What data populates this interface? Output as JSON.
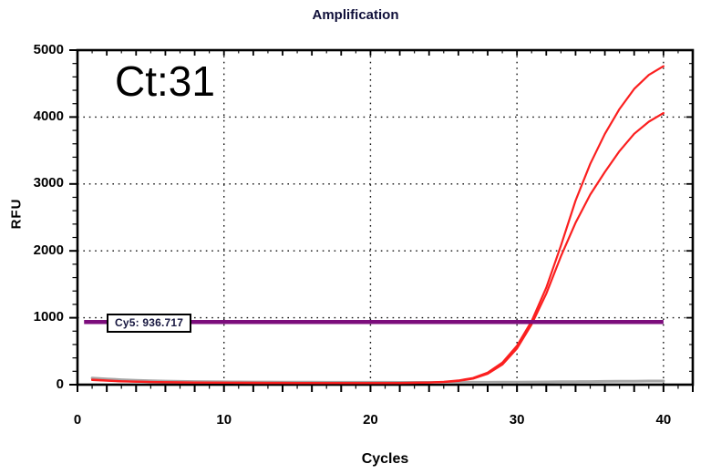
{
  "title": "Amplification",
  "annotation": {
    "ct_label": "Ct:31"
  },
  "colors": {
    "curve_red": "#fb1f1f",
    "baseline_gray": "#a6a6a6",
    "threshold_purple": "#7c0d7c",
    "axis_black": "#000000",
    "background": "#ffffff"
  },
  "chart_data": {
    "type": "line",
    "title": "Amplification",
    "xlabel": "Cycles",
    "ylabel": "RFU",
    "xlim": [
      0,
      42
    ],
    "ylim": [
      0,
      5000
    ],
    "x_ticks": [
      0,
      10,
      20,
      30,
      40
    ],
    "y_ticks": [
      0,
      1000,
      2000,
      3000,
      4000,
      5000
    ],
    "x_minor_step": 1,
    "x_major_step": 2,
    "y_minor_step": 200,
    "y_major_step": 1000,
    "grid": {
      "style": "dotted",
      "color": "#111111",
      "x_lines": [
        10,
        20,
        30,
        40
      ],
      "y_lines": [
        1000,
        2000,
        3000,
        4000
      ]
    },
    "legend": "none",
    "x": [
      1,
      2,
      3,
      4,
      5,
      6,
      7,
      8,
      9,
      10,
      11,
      12,
      13,
      14,
      15,
      16,
      17,
      18,
      19,
      20,
      21,
      22,
      23,
      24,
      25,
      26,
      27,
      28,
      29,
      30,
      31,
      32,
      33,
      34,
      35,
      36,
      37,
      38,
      39,
      40
    ],
    "series": [
      {
        "name": "baseline-gray-trace",
        "color": "#a6a6a6",
        "width": 3,
        "values": [
          100,
          86,
          74,
          65,
          58,
          53,
          49,
          46,
          44,
          42,
          41,
          40,
          39,
          38,
          37,
          37,
          36,
          36,
          35,
          35,
          35,
          34,
          34,
          34,
          34,
          35,
          35,
          36,
          37,
          38,
          39,
          41,
          43,
          45,
          47,
          49,
          51,
          52,
          54,
          55
        ]
      },
      {
        "name": "sample-red-lower",
        "color": "#fb1f1f",
        "width": 2.2,
        "values": [
          70,
          58,
          49,
          43,
          39,
          36,
          33,
          31,
          30,
          28,
          27,
          26,
          26,
          25,
          25,
          24,
          24,
          24,
          24,
          24,
          24,
          25,
          27,
          31,
          39,
          56,
          90,
          162,
          300,
          540,
          900,
          1360,
          1920,
          2420,
          2840,
          3180,
          3490,
          3750,
          3930,
          4060
        ]
      },
      {
        "name": "sample-red-upper",
        "color": "#fb1f1f",
        "width": 2.2,
        "values": [
          75,
          62,
          52,
          46,
          41,
          38,
          35,
          33,
          31,
          30,
          29,
          28,
          27,
          27,
          26,
          26,
          25,
          25,
          25,
          25,
          25,
          26,
          28,
          33,
          42,
          62,
          100,
          180,
          330,
          580,
          950,
          1450,
          2080,
          2750,
          3300,
          3750,
          4120,
          4420,
          4630,
          4760
        ]
      }
    ],
    "threshold": {
      "label": "Cy5: 936.717",
      "value": 936.717,
      "color": "#7c0d7c",
      "x_start": 0.45,
      "x_end": 40
    }
  }
}
